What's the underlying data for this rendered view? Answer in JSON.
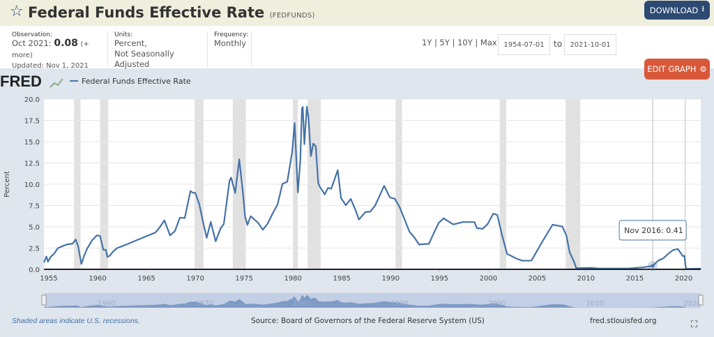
{
  "header": {
    "title": "Federal Funds Effective Rate",
    "series_id": "(FEDFUNDS)",
    "download_label": "DOWNLOAD",
    "star_icon": "star-outline-icon",
    "download_icon": "download-icon"
  },
  "info": {
    "observation_label": "Observation:",
    "observation_period": "Oct 2021:",
    "observation_value": "0.08",
    "more_label": "(+ more)",
    "updated": "Updated: Nov 1, 2021",
    "units_label": "Units:",
    "units_line1": "Percent,",
    "units_line2": "Not Seasonally Adjusted",
    "frequency_label": "Frequency:",
    "frequency_value": "Monthly"
  },
  "controls": {
    "ranges": [
      "1Y",
      "5Y",
      "10Y",
      "Max"
    ],
    "start_date": "1954-07-01",
    "to_label": "to",
    "end_date": "2021-10-01",
    "edit_label": "EDIT GRAPH",
    "edit_icon": "gear-icon"
  },
  "footer": {
    "recession_note": "Shaded areas indicate U.S. recessions.",
    "source": "Source: Board of Governors of the Federal Reserve System (US)",
    "site": "fred.stlouisfed.org",
    "fullscreen_icon": "expand-icon"
  },
  "colors": {
    "line": "#4572a7",
    "recession": "#e1e1e1",
    "download": "#2c4a72",
    "edit": "#d9583a"
  },
  "chart_data": {
    "type": "line",
    "logo": "FRED",
    "legend": "Federal Funds Effective Rate",
    "legend_position": "top-left",
    "ylabel": "Percent",
    "ylim": [
      0,
      20
    ],
    "yticks": [
      "0.0",
      "2.5",
      "5.0",
      "7.5",
      "10.0",
      "12.5",
      "15.0",
      "17.5",
      "20.0"
    ],
    "xlim": [
      "1954-07",
      "2021-10"
    ],
    "xticks": [
      "1955",
      "1960",
      "1965",
      "1970",
      "1975",
      "1980",
      "1985",
      "1990",
      "1995",
      "2000",
      "2005",
      "2010",
      "2015",
      "2020"
    ],
    "navigator_ticks": [
      "1960",
      "1970",
      "1980",
      "1990",
      "2000",
      "2010",
      "2020"
    ],
    "grid": true,
    "recessions": [
      [
        "1957-08",
        "1958-04"
      ],
      [
        "1960-04",
        "1961-02"
      ],
      [
        "1969-12",
        "1970-11"
      ],
      [
        "1973-11",
        "1975-03"
      ],
      [
        "1980-01",
        "1980-07"
      ],
      [
        "1981-07",
        "1982-11"
      ],
      [
        "1990-07",
        "1991-03"
      ],
      [
        "2001-03",
        "2001-11"
      ],
      [
        "2007-12",
        "2009-06"
      ],
      [
        "2020-02",
        "2020-04"
      ]
    ],
    "tooltip": {
      "date": "Nov 2016",
      "label": "Nov 2016:",
      "value": "0.41"
    },
    "series": [
      {
        "name": "Federal Funds Effective Rate",
        "points": [
          [
            "1954-07",
            0.8
          ],
          [
            "1954-10",
            1.5
          ],
          [
            "1954-12",
            0.9
          ],
          [
            "1955-03",
            1.43
          ],
          [
            "1955-08",
            1.9
          ],
          [
            "1955-12",
            2.48
          ],
          [
            "1956-06",
            2.73
          ],
          [
            "1956-12",
            2.94
          ],
          [
            "1957-06",
            3.0
          ],
          [
            "1957-10",
            3.5
          ],
          [
            "1958-01",
            2.72
          ],
          [
            "1958-05",
            0.63
          ],
          [
            "1958-08",
            1.5
          ],
          [
            "1958-12",
            2.42
          ],
          [
            "1959-06",
            3.39
          ],
          [
            "1959-12",
            3.99
          ],
          [
            "1960-04",
            3.92
          ],
          [
            "1960-08",
            2.3
          ],
          [
            "1960-11",
            2.3
          ],
          [
            "1961-01",
            1.45
          ],
          [
            "1961-04",
            1.6
          ],
          [
            "1961-08",
            2.1
          ],
          [
            "1962-01",
            2.5
          ],
          [
            "1962-06",
            2.68
          ],
          [
            "1962-12",
            2.9
          ],
          [
            "1963-12",
            3.38
          ],
          [
            "1964-12",
            3.85
          ],
          [
            "1965-12",
            4.32
          ],
          [
            "1966-05",
            4.9
          ],
          [
            "1966-11",
            5.76
          ],
          [
            "1967-06",
            3.98
          ],
          [
            "1967-12",
            4.51
          ],
          [
            "1968-06",
            6.07
          ],
          [
            "1968-12",
            6.02
          ],
          [
            "1969-07",
            9.19
          ],
          [
            "1969-10",
            9.0
          ],
          [
            "1970-01",
            8.98
          ],
          [
            "1970-06",
            7.6
          ],
          [
            "1970-12",
            4.9
          ],
          [
            "1971-03",
            3.71
          ],
          [
            "1971-08",
            5.57
          ],
          [
            "1972-02",
            3.29
          ],
          [
            "1972-08",
            4.8
          ],
          [
            "1972-12",
            5.33
          ],
          [
            "1973-07",
            10.4
          ],
          [
            "1973-09",
            10.78
          ],
          [
            "1974-02",
            8.97
          ],
          [
            "1974-07",
            12.92
          ],
          [
            "1974-12",
            8.53
          ],
          [
            "1975-02",
            6.24
          ],
          [
            "1975-05",
            5.22
          ],
          [
            "1975-09",
            6.24
          ],
          [
            "1976-06",
            5.48
          ],
          [
            "1976-12",
            4.65
          ],
          [
            "1977-06",
            5.39
          ],
          [
            "1977-12",
            6.56
          ],
          [
            "1978-06",
            7.6
          ],
          [
            "1978-12",
            10.03
          ],
          [
            "1979-06",
            10.29
          ],
          [
            "1979-12",
            13.78
          ],
          [
            "1980-03",
            17.19
          ],
          [
            "1980-07",
            9.03
          ],
          [
            "1980-10",
            12.81
          ],
          [
            "1980-12",
            18.9
          ],
          [
            "1981-01",
            19.08
          ],
          [
            "1981-03",
            14.7
          ],
          [
            "1981-06",
            19.1
          ],
          [
            "1981-08",
            17.82
          ],
          [
            "1981-11",
            13.31
          ],
          [
            "1982-02",
            14.78
          ],
          [
            "1982-05",
            14.45
          ],
          [
            "1982-08",
            10.12
          ],
          [
            "1982-10",
            9.71
          ],
          [
            "1983-04",
            8.8
          ],
          [
            "1983-08",
            9.56
          ],
          [
            "1983-12",
            9.47
          ],
          [
            "1984-08",
            11.64
          ],
          [
            "1984-12",
            8.38
          ],
          [
            "1985-06",
            7.53
          ],
          [
            "1985-12",
            8.27
          ],
          [
            "1986-06",
            6.92
          ],
          [
            "1986-10",
            5.85
          ],
          [
            "1987-06",
            6.73
          ],
          [
            "1987-12",
            6.77
          ],
          [
            "1988-06",
            7.51
          ],
          [
            "1988-12",
            8.76
          ],
          [
            "1989-05",
            9.81
          ],
          [
            "1989-12",
            8.45
          ],
          [
            "1990-06",
            8.29
          ],
          [
            "1990-12",
            7.31
          ],
          [
            "1991-06",
            5.9
          ],
          [
            "1991-12",
            4.43
          ],
          [
            "1992-06",
            3.76
          ],
          [
            "1992-12",
            2.92
          ],
          [
            "1993-12",
            3.0
          ],
          [
            "1994-06",
            4.25
          ],
          [
            "1994-12",
            5.45
          ],
          [
            "1995-06",
            6.0
          ],
          [
            "1996-06",
            5.27
          ],
          [
            "1997-06",
            5.56
          ],
          [
            "1998-08",
            5.55
          ],
          [
            "1998-11",
            4.83
          ],
          [
            "1999-06",
            4.76
          ],
          [
            "1999-12",
            5.3
          ],
          [
            "2000-07",
            6.54
          ],
          [
            "2000-12",
            6.4
          ],
          [
            "2001-06",
            3.97
          ],
          [
            "2001-12",
            1.82
          ],
          [
            "2002-12",
            1.24
          ],
          [
            "2003-07",
            1.01
          ],
          [
            "2004-06",
            1.03
          ],
          [
            "2005-06",
            3.04
          ],
          [
            "2006-08",
            5.25
          ],
          [
            "2007-08",
            5.02
          ],
          [
            "2008-01",
            3.94
          ],
          [
            "2008-05",
            1.98
          ],
          [
            "2008-10",
            0.97
          ],
          [
            "2009-01",
            0.15
          ],
          [
            "2010-06",
            0.18
          ],
          [
            "2011-06",
            0.09
          ],
          [
            "2014-06",
            0.1
          ],
          [
            "2015-12",
            0.24
          ],
          [
            "2016-11",
            0.41
          ],
          [
            "2017-06",
            1.04
          ],
          [
            "2017-12",
            1.3
          ],
          [
            "2018-06",
            1.82
          ],
          [
            "2018-12",
            2.27
          ],
          [
            "2019-06",
            2.38
          ],
          [
            "2019-12",
            1.55
          ],
          [
            "2020-02",
            1.58
          ],
          [
            "2020-03",
            0.65
          ],
          [
            "2020-04",
            0.05
          ],
          [
            "2021-10",
            0.08
          ]
        ]
      }
    ]
  }
}
